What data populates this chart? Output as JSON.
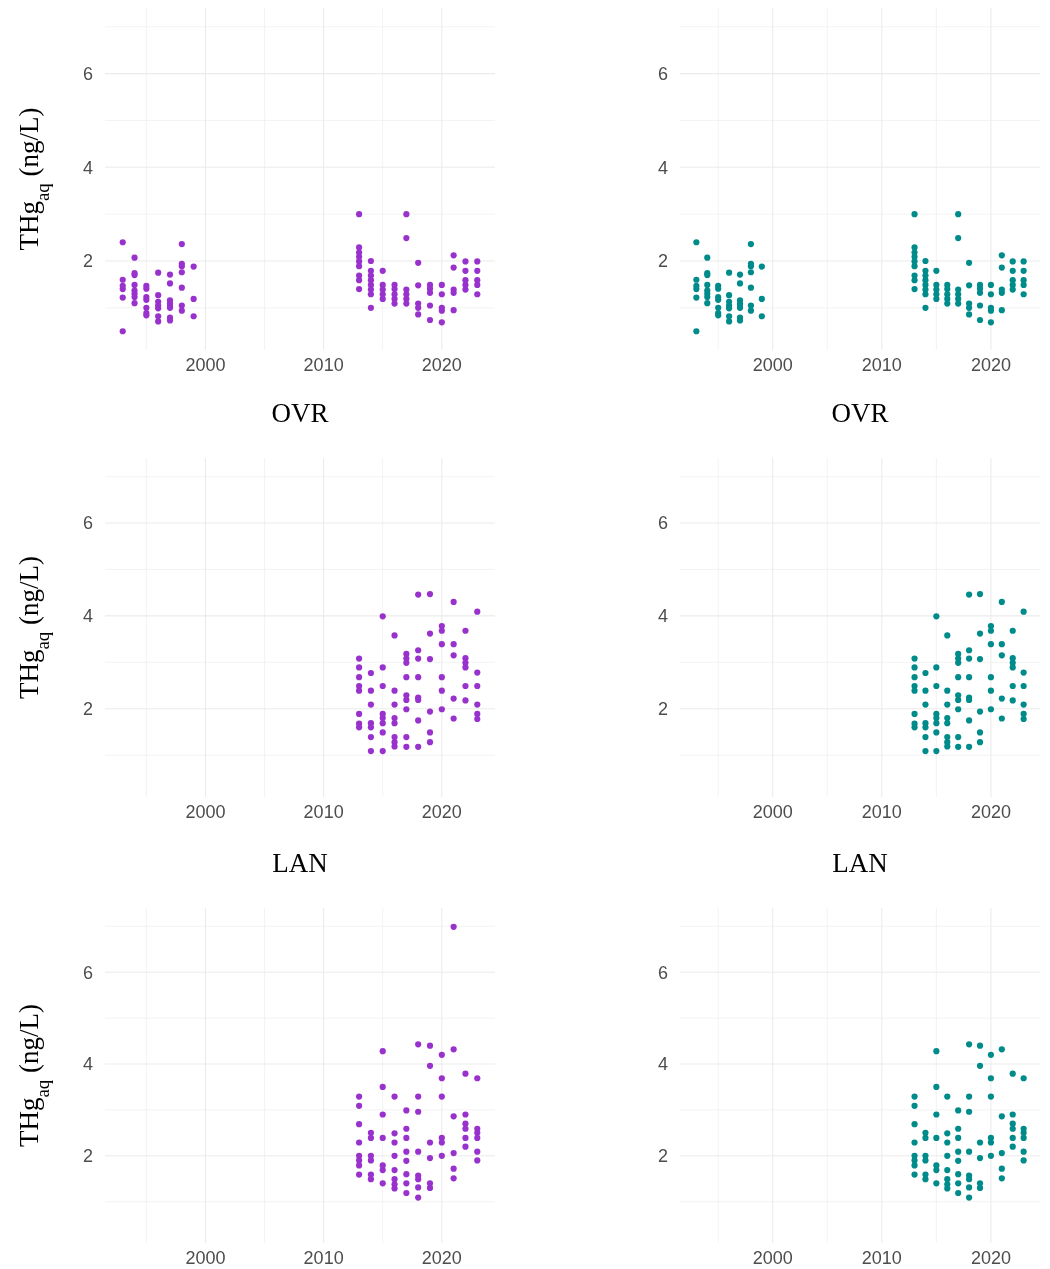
{
  "chart_data": [
    {
      "type": "scatter",
      "ylabel": "THg$_{aq}$ (ng/L)",
      "xlim": [
        1991.5,
        2024.5
      ],
      "ylim": [
        0.1,
        7.4
      ],
      "xticks": [
        {
          "value": 1995,
          "label": null
        },
        2000,
        {
          "value": 2005,
          "label": null
        },
        2010,
        {
          "value": 2015,
          "label": null
        },
        2020
      ],
      "yticks": [
        {
          "value": 1,
          "label": null
        },
        2,
        {
          "value": 3,
          "label": null
        },
        4,
        {
          "value": 5,
          "label": null
        },
        6,
        {
          "value": 7,
          "label": null
        }
      ],
      "grid": true,
      "marker": "circle",
      "series": [
        {
          "color": "#9932cc",
          "x": [
            1993,
            1993,
            1993,
            1993,
            1993,
            1993,
            1994,
            1994,
            1994,
            1994,
            1994,
            1994,
            1994,
            1994,
            1995,
            1995,
            1995,
            1995,
            1995,
            1995,
            1995,
            1996,
            1996,
            1996,
            1996,
            1996,
            1996,
            1996,
            1997,
            1997,
            1997,
            1997,
            1997,
            1997,
            1997,
            1997,
            1998,
            1998,
            1998,
            1998,
            1998,
            1998,
            1998,
            1999,
            1999,
            1999,
            2013,
            2013,
            2013,
            2013,
            2013,
            2013,
            2013,
            2013,
            2013,
            2014,
            2014,
            2014,
            2014,
            2014,
            2014,
            2014,
            2014,
            2015,
            2015,
            2015,
            2015,
            2015,
            2016,
            2016,
            2016,
            2016,
            2016,
            2017,
            2017,
            2017,
            2017,
            2017,
            2017,
            2018,
            2018,
            2018,
            2018,
            2018,
            2019,
            2019,
            2019,
            2019,
            2019,
            2020,
            2020,
            2020,
            2020,
            2020,
            2021,
            2021,
            2021,
            2021,
            2021,
            2022,
            2022,
            2022,
            2022,
            2022,
            2023,
            2023,
            2023,
            2023,
            2023
          ],
          "values": [
            2.4,
            1.6,
            1.47,
            1.4,
            1.22,
            0.5,
            2.07,
            1.74,
            1.7,
            1.49,
            1.37,
            1.3,
            1.23,
            1.1,
            1.47,
            1.41,
            1.23,
            1.17,
            1.0,
            0.89,
            0.84,
            1.75,
            1.27,
            1.13,
            1.05,
            0.99,
            0.82,
            0.71,
            1.71,
            1.52,
            1.16,
            1.1,
            1.04,
            1.0,
            0.79,
            0.73,
            2.36,
            1.94,
            1.89,
            1.76,
            1.43,
            1.05,
            0.94,
            1.88,
            1.19,
            0.82,
            3.0,
            2.29,
            2.18,
            2.09,
            1.99,
            1.89,
            1.69,
            1.59,
            1.4,
            2.0,
            1.79,
            1.69,
            1.59,
            1.49,
            1.39,
            1.29,
            1.0,
            1.79,
            1.49,
            1.39,
            1.29,
            1.19,
            1.49,
            1.4,
            1.29,
            1.19,
            1.09,
            3.0,
            2.49,
            1.39,
            1.29,
            1.19,
            1.09,
            1.96,
            1.48,
            1.09,
            1.0,
            0.86,
            1.49,
            1.41,
            1.32,
            1.05,
            0.74,
            1.49,
            1.29,
            1.0,
            0.94,
            0.69,
            2.12,
            1.86,
            1.39,
            1.32,
            0.95,
            1.99,
            1.79,
            1.59,
            1.49,
            1.39,
            1.99,
            1.79,
            1.59,
            1.49,
            1.29
          ]
        }
      ]
    },
    {
      "type": "scatter",
      "xlim": [
        1991.5,
        2024.5
      ],
      "ylim": [
        0.1,
        7.4
      ],
      "xticks": [
        {
          "value": 1995,
          "label": null
        },
        2000,
        {
          "value": 2005,
          "label": null
        },
        2010,
        {
          "value": 2015,
          "label": null
        },
        2020
      ],
      "yticks": [
        {
          "value": 1,
          "label": null
        },
        2,
        {
          "value": 3,
          "label": null
        },
        4,
        {
          "value": 5,
          "label": null
        },
        6,
        {
          "value": 7,
          "label": null
        }
      ],
      "grid": true,
      "marker": "circle",
      "series": [
        {
          "color": "#008b8b",
          "x": [
            1993,
            1993,
            1993,
            1993,
            1993,
            1993,
            1994,
            1994,
            1994,
            1994,
            1994,
            1994,
            1994,
            1994,
            1995,
            1995,
            1995,
            1995,
            1995,
            1995,
            1995,
            1996,
            1996,
            1996,
            1996,
            1996,
            1996,
            1996,
            1997,
            1997,
            1997,
            1997,
            1997,
            1997,
            1997,
            1997,
            1998,
            1998,
            1998,
            1998,
            1998,
            1998,
            1998,
            1999,
            1999,
            1999,
            2013,
            2013,
            2013,
            2013,
            2013,
            2013,
            2013,
            2013,
            2013,
            2014,
            2014,
            2014,
            2014,
            2014,
            2014,
            2014,
            2014,
            2015,
            2015,
            2015,
            2015,
            2015,
            2016,
            2016,
            2016,
            2016,
            2016,
            2017,
            2017,
            2017,
            2017,
            2017,
            2017,
            2018,
            2018,
            2018,
            2018,
            2018,
            2019,
            2019,
            2019,
            2019,
            2019,
            2020,
            2020,
            2020,
            2020,
            2020,
            2021,
            2021,
            2021,
            2021,
            2021,
            2022,
            2022,
            2022,
            2022,
            2022,
            2023,
            2023,
            2023,
            2023,
            2023
          ],
          "values": [
            2.4,
            1.6,
            1.47,
            1.4,
            1.22,
            0.5,
            2.07,
            1.74,
            1.7,
            1.49,
            1.37,
            1.3,
            1.23,
            1.1,
            1.47,
            1.41,
            1.23,
            1.17,
            1.0,
            0.89,
            0.84,
            1.75,
            1.27,
            1.13,
            1.05,
            0.99,
            0.82,
            0.71,
            1.71,
            1.52,
            1.16,
            1.1,
            1.04,
            1.0,
            0.79,
            0.73,
            2.36,
            1.94,
            1.89,
            1.76,
            1.43,
            1.05,
            0.94,
            1.88,
            1.19,
            0.82,
            3.0,
            2.29,
            2.18,
            2.09,
            1.99,
            1.89,
            1.69,
            1.59,
            1.4,
            2.0,
            1.79,
            1.69,
            1.59,
            1.49,
            1.39,
            1.29,
            1.0,
            1.79,
            1.49,
            1.39,
            1.29,
            1.19,
            1.49,
            1.4,
            1.29,
            1.19,
            1.09,
            3.0,
            2.49,
            1.39,
            1.29,
            1.19,
            1.09,
            1.96,
            1.48,
            1.09,
            1.0,
            0.86,
            1.49,
            1.41,
            1.32,
            1.05,
            0.74,
            1.49,
            1.29,
            1.0,
            0.94,
            0.69,
            2.12,
            1.86,
            1.39,
            1.32,
            0.95,
            1.99,
            1.79,
            1.59,
            1.49,
            1.39,
            1.99,
            1.79,
            1.59,
            1.49,
            1.29
          ]
        }
      ]
    },
    {
      "type": "scatter",
      "title": "OVR",
      "ylabel": "THg$_{aq}$ (ng/L)",
      "xlim": [
        1991.5,
        2024.5
      ],
      "ylim": [
        0.1,
        7.4
      ],
      "xticks": [
        {
          "value": 1995,
          "label": null
        },
        2000,
        {
          "value": 2005,
          "label": null
        },
        2010,
        {
          "value": 2015,
          "label": null
        },
        2020
      ],
      "yticks": [
        {
          "value": 1,
          "label": null
        },
        2,
        {
          "value": 3,
          "label": null
        },
        4,
        {
          "value": 5,
          "label": null
        },
        6,
        {
          "value": 7,
          "label": null
        }
      ],
      "grid": true,
      "marker": "circle",
      "series": [
        {
          "color": "#9932cc",
          "x": [
            2013,
            2013,
            2013,
            2013,
            2013,
            2013,
            2013,
            2013,
            2014,
            2014,
            2014,
            2014,
            2014,
            2014,
            2014,
            2015,
            2015,
            2015,
            2015,
            2015,
            2015,
            2015,
            2015,
            2016,
            2016,
            2016,
            2016,
            2016,
            2016,
            2016,
            2016,
            2017,
            2017,
            2017,
            2017,
            2017,
            2017,
            2017,
            2017,
            2017,
            2018,
            2018,
            2018,
            2018,
            2018,
            2018,
            2018,
            2018,
            2019,
            2019,
            2019,
            2019,
            2019,
            2019,
            2020,
            2020,
            2020,
            2020,
            2020,
            2020,
            2021,
            2021,
            2021,
            2021,
            2021,
            2022,
            2022,
            2022,
            2022,
            2022,
            2022,
            2023,
            2023,
            2023,
            2023,
            2023,
            2023
          ],
          "values": [
            3.08,
            2.89,
            2.68,
            2.49,
            2.39,
            1.89,
            1.68,
            1.6,
            2.77,
            2.39,
            2.09,
            1.69,
            1.6,
            1.39,
            1.09,
            3.99,
            2.89,
            2.49,
            1.89,
            1.8,
            1.69,
            1.49,
            1.09,
            3.58,
            2.39,
            2.09,
            1.8,
            1.69,
            1.39,
            1.28,
            1.19,
            3.18,
            3.08,
            2.99,
            2.68,
            2.29,
            2.19,
            1.99,
            1.39,
            1.18,
            4.46,
            3.26,
            3.08,
            2.68,
            2.24,
            2.19,
            1.75,
            1.18,
            4.47,
            3.62,
            3.07,
            1.94,
            1.49,
            1.28,
            3.78,
            3.68,
            3.39,
            2.68,
            2.39,
            1.99,
            4.3,
            3.39,
            3.15,
            2.22,
            1.79,
            3.68,
            3.09,
            2.99,
            2.89,
            2.49,
            2.18,
            4.09,
            2.78,
            2.49,
            2.09,
            1.89,
            1.78
          ]
        }
      ]
    },
    {
      "type": "scatter",
      "title": "OVR",
      "xlim": [
        1991.5,
        2024.5
      ],
      "ylim": [
        0.1,
        7.4
      ],
      "xticks": [
        {
          "value": 1995,
          "label": null
        },
        2000,
        {
          "value": 2005,
          "label": null
        },
        2010,
        {
          "value": 2015,
          "label": null
        },
        2020
      ],
      "yticks": [
        {
          "value": 1,
          "label": null
        },
        2,
        {
          "value": 3,
          "label": null
        },
        4,
        {
          "value": 5,
          "label": null
        },
        6,
        {
          "value": 7,
          "label": null
        }
      ],
      "grid": true,
      "marker": "circle",
      "series": [
        {
          "color": "#008b8b",
          "x": [
            2013,
            2013,
            2013,
            2013,
            2013,
            2013,
            2013,
            2013,
            2014,
            2014,
            2014,
            2014,
            2014,
            2014,
            2014,
            2015,
            2015,
            2015,
            2015,
            2015,
            2015,
            2015,
            2015,
            2016,
            2016,
            2016,
            2016,
            2016,
            2016,
            2016,
            2016,
            2017,
            2017,
            2017,
            2017,
            2017,
            2017,
            2017,
            2017,
            2017,
            2018,
            2018,
            2018,
            2018,
            2018,
            2018,
            2018,
            2018,
            2019,
            2019,
            2019,
            2019,
            2019,
            2019,
            2020,
            2020,
            2020,
            2020,
            2020,
            2020,
            2021,
            2021,
            2021,
            2021,
            2021,
            2022,
            2022,
            2022,
            2022,
            2022,
            2022,
            2023,
            2023,
            2023,
            2023,
            2023,
            2023
          ],
          "values": [
            3.08,
            2.89,
            2.68,
            2.49,
            2.39,
            1.89,
            1.68,
            1.6,
            2.77,
            2.39,
            2.09,
            1.69,
            1.6,
            1.39,
            1.09,
            3.99,
            2.89,
            2.49,
            1.89,
            1.8,
            1.69,
            1.49,
            1.09,
            3.58,
            2.39,
            2.09,
            1.8,
            1.69,
            1.39,
            1.28,
            1.19,
            3.18,
            3.08,
            2.99,
            2.68,
            2.29,
            2.19,
            1.99,
            1.39,
            1.18,
            4.46,
            3.26,
            3.08,
            2.68,
            2.24,
            2.19,
            1.75,
            1.18,
            4.47,
            3.62,
            3.07,
            1.94,
            1.49,
            1.28,
            3.78,
            3.68,
            3.39,
            2.68,
            2.39,
            1.99,
            4.3,
            3.39,
            3.15,
            2.22,
            1.79,
            3.68,
            3.09,
            2.99,
            2.89,
            2.49,
            2.18,
            4.09,
            2.78,
            2.49,
            2.09,
            1.89,
            1.78
          ]
        }
      ]
    },
    {
      "type": "scatter",
      "title": "LAN",
      "ylabel": "THg$_{aq}$ (ng/L)",
      "xlim": [
        1991.5,
        2024.5
      ],
      "ylim": [
        0.1,
        7.4
      ],
      "xticks": [
        {
          "value": 1995,
          "label": null
        },
        2000,
        {
          "value": 2005,
          "label": null
        },
        2010,
        {
          "value": 2015,
          "label": null
        },
        2020
      ],
      "yticks": [
        {
          "value": 1,
          "label": null
        },
        2,
        {
          "value": 3,
          "label": null
        },
        4,
        {
          "value": 5,
          "label": null
        },
        6,
        {
          "value": 7,
          "label": null
        }
      ],
      "grid": true,
      "marker": "circle",
      "series": [
        {
          "color": "#9932cc",
          "x": [
            2013,
            2013,
            2013,
            2013,
            2013,
            2013,
            2013,
            2013,
            2014,
            2014,
            2014,
            2014,
            2014,
            2014,
            2015,
            2015,
            2015,
            2015,
            2015,
            2015,
            2015,
            2016,
            2016,
            2016,
            2016,
            2016,
            2016,
            2016,
            2016,
            2017,
            2017,
            2017,
            2017,
            2017,
            2017,
            2017,
            2017,
            2018,
            2018,
            2018,
            2018,
            2018,
            2018,
            2018,
            2018,
            2019,
            2019,
            2019,
            2019,
            2019,
            2019,
            2020,
            2020,
            2020,
            2020,
            2020,
            2020,
            2021,
            2021,
            2021,
            2021,
            2021,
            2021,
            2022,
            2022,
            2022,
            2022,
            2022,
            2022,
            2023,
            2023,
            2023,
            2023,
            2023,
            2023
          ],
          "values": [
            3.29,
            3.09,
            2.69,
            2.29,
            2.0,
            1.9,
            1.79,
            1.59,
            2.5,
            2.39,
            2.0,
            1.9,
            1.59,
            1.49,
            4.28,
            3.5,
            2.9,
            2.39,
            1.79,
            1.69,
            1.4,
            3.29,
            2.49,
            2.29,
            2.0,
            1.69,
            1.49,
            1.38,
            1.29,
            2.99,
            2.59,
            2.39,
            2.09,
            1.89,
            1.6,
            1.4,
            1.19,
            4.43,
            3.29,
            2.96,
            2.09,
            1.57,
            1.49,
            1.31,
            1.09,
            4.4,
            3.96,
            2.29,
            1.95,
            1.4,
            1.3,
            4.2,
            3.69,
            3.29,
            2.39,
            2.29,
            2.0,
            6.99,
            4.32,
            2.86,
            2.06,
            1.72,
            1.51,
            3.79,
            2.9,
            2.7,
            2.59,
            2.39,
            2.2,
            3.69,
            2.59,
            2.5,
            2.39,
            2.09,
            1.9
          ]
        }
      ]
    },
    {
      "type": "scatter",
      "title": "LAN",
      "xlim": [
        1991.5,
        2024.5
      ],
      "ylim": [
        0.1,
        7.4
      ],
      "xticks": [
        {
          "value": 1995,
          "label": null
        },
        2000,
        {
          "value": 2005,
          "label": null
        },
        2010,
        {
          "value": 2015,
          "label": null
        },
        2020
      ],
      "yticks": [
        {
          "value": 1,
          "label": null
        },
        2,
        {
          "value": 3,
          "label": null
        },
        4,
        {
          "value": 5,
          "label": null
        },
        6,
        {
          "value": 7,
          "label": null
        }
      ],
      "grid": true,
      "marker": "circle",
      "series": [
        {
          "color": "#008b8b",
          "x": [
            2013,
            2013,
            2013,
            2013,
            2013,
            2013,
            2013,
            2013,
            2014,
            2014,
            2014,
            2014,
            2014,
            2014,
            2015,
            2015,
            2015,
            2015,
            2015,
            2015,
            2015,
            2016,
            2016,
            2016,
            2016,
            2016,
            2016,
            2016,
            2016,
            2017,
            2017,
            2017,
            2017,
            2017,
            2017,
            2017,
            2017,
            2018,
            2018,
            2018,
            2018,
            2018,
            2018,
            2018,
            2018,
            2019,
            2019,
            2019,
            2019,
            2019,
            2019,
            2020,
            2020,
            2020,
            2020,
            2020,
            2020,
            2021,
            2021,
            2021,
            2021,
            2021,
            2022,
            2022,
            2022,
            2022,
            2022,
            2022,
            2023,
            2023,
            2023,
            2023,
            2023,
            2023
          ],
          "values": [
            3.29,
            3.09,
            2.69,
            2.29,
            2.0,
            1.9,
            1.79,
            1.59,
            2.5,
            2.39,
            2.0,
            1.9,
            1.59,
            1.49,
            4.28,
            3.5,
            2.9,
            2.39,
            1.79,
            1.69,
            1.4,
            3.29,
            2.49,
            2.29,
            2.0,
            1.69,
            1.49,
            1.38,
            1.29,
            2.99,
            2.59,
            2.39,
            2.09,
            1.89,
            1.6,
            1.4,
            1.19,
            4.43,
            3.29,
            2.96,
            2.09,
            1.57,
            1.49,
            1.31,
            1.09,
            4.4,
            3.96,
            2.29,
            1.95,
            1.4,
            1.3,
            4.2,
            3.69,
            3.29,
            2.39,
            2.29,
            2.0,
            4.32,
            2.86,
            2.06,
            1.72,
            1.51,
            3.79,
            2.9,
            2.7,
            2.59,
            2.39,
            2.2,
            3.69,
            2.59,
            2.5,
            2.39,
            2.09,
            1.9
          ]
        }
      ]
    }
  ]
}
